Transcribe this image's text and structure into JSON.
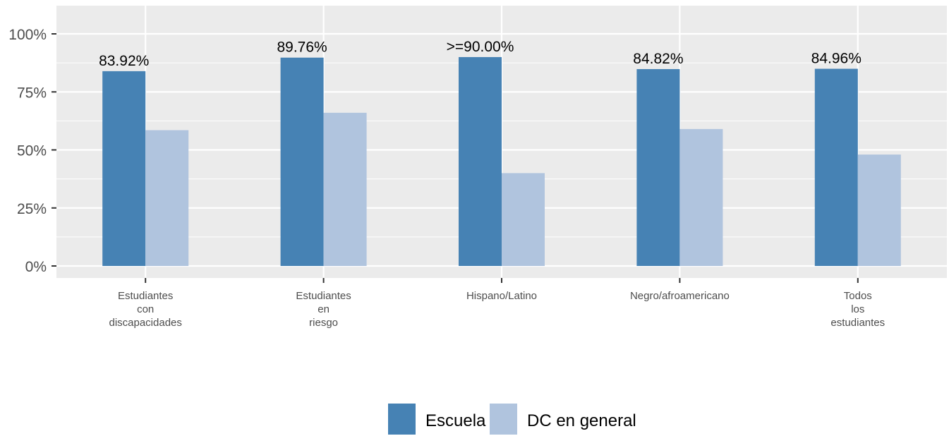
{
  "chart_data": {
    "type": "bar",
    "categories": [
      "Estudiantes con discapacidades",
      "Estudiantes en riesgo",
      "Hispano/Latino",
      "Negro/afroamericano",
      "Todos los estudiantes"
    ],
    "category_label_lines": [
      [
        "Estudiantes",
        "con",
        "discapacidades"
      ],
      [
        "Estudiantes",
        "en",
        "riesgo"
      ],
      [
        "Hispano/Latino"
      ],
      [
        "Negro/afroamericano"
      ],
      [
        "Todos",
        "los",
        "estudiantes"
      ]
    ],
    "series": [
      {
        "name": "Escuela",
        "color": "#4682b4",
        "values": [
          83.92,
          89.76,
          90.0,
          84.82,
          84.96
        ],
        "labels": [
          "83.92%",
          "89.76%",
          ">=90.00%",
          "84.82%",
          "84.96%"
        ]
      },
      {
        "name": "DC en general",
        "color": "#b0c4de",
        "values": [
          58.5,
          66.0,
          40.0,
          59.0,
          48.0
        ]
      }
    ],
    "ylim": [
      0,
      100
    ],
    "yticks": [
      0,
      25,
      50,
      75,
      100
    ],
    "ytick_labels": [
      "0%",
      "25%",
      "50%",
      "75%",
      "100%"
    ],
    "title": "",
    "xlabel": "",
    "ylabel": "",
    "grid": true,
    "legend_position": "bottom",
    "background_color": "#ebebeb",
    "grid_color": "#ffffff"
  }
}
